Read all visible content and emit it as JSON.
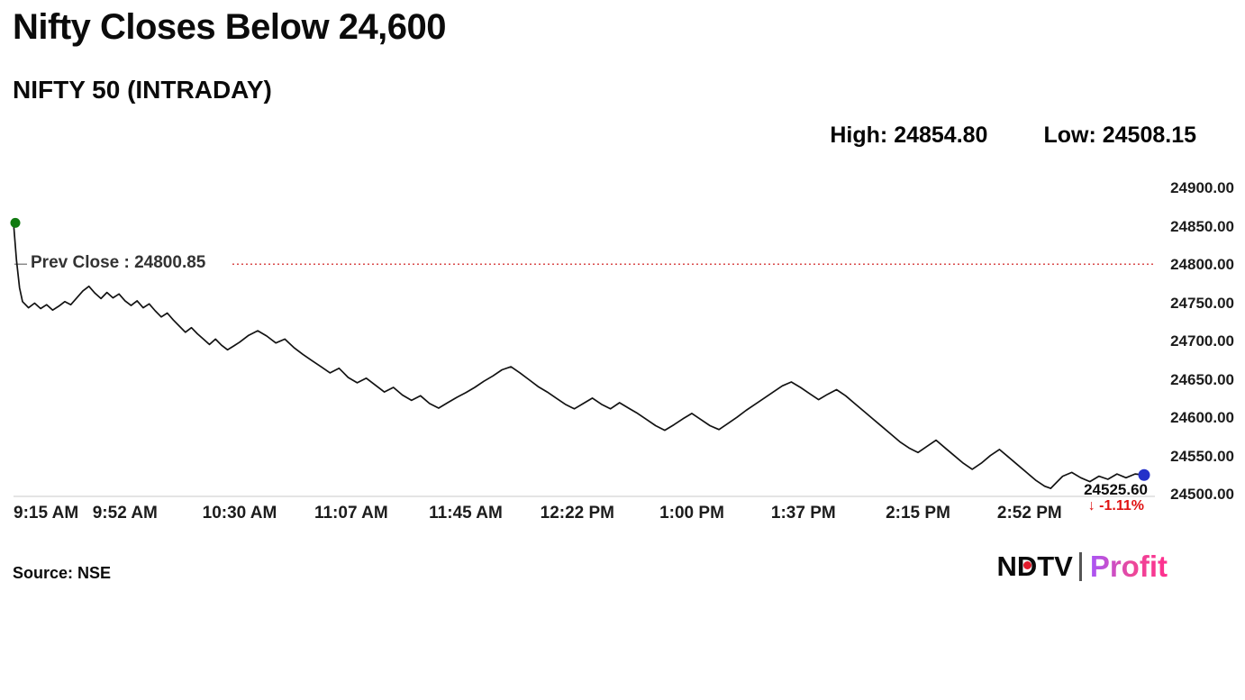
{
  "header": {
    "title": "Nifty Closes Below 24,600",
    "subtitle": "NIFTY 50 (INTRADAY)",
    "high": "High: 24854.80",
    "low": "Low: 24508.15"
  },
  "chart_data": {
    "type": "line",
    "title": "NIFTY 50 (INTRADAY)",
    "grid": false,
    "legend": "none",
    "x_axis": {
      "unit": "minutes since 9:15 AM",
      "range": [
        0,
        375
      ],
      "ticks": [
        {
          "t": 0,
          "label": "9:15 AM"
        },
        {
          "t": 37,
          "label": "9:52 AM"
        },
        {
          "t": 75,
          "label": "10:30 AM"
        },
        {
          "t": 112,
          "label": "11:07 AM"
        },
        {
          "t": 150,
          "label": "11:45 AM"
        },
        {
          "t": 187,
          "label": "12:22 PM"
        },
        {
          "t": 225,
          "label": "1:00 PM"
        },
        {
          "t": 262,
          "label": "1:37 PM"
        },
        {
          "t": 300,
          "label": "2:15 PM"
        },
        {
          "t": 337,
          "label": "2:52 PM"
        }
      ]
    },
    "y_axis": {
      "range": [
        24500,
        24900
      ],
      "ticks": [
        {
          "value": 24900,
          "label": "24900.00"
        },
        {
          "value": 24850,
          "label": "24850.00"
        },
        {
          "value": 24800,
          "label": "24800.00"
        },
        {
          "value": 24750,
          "label": "24750.00"
        },
        {
          "value": 24700,
          "label": "24700.00"
        },
        {
          "value": 24650,
          "label": "24650.00"
        },
        {
          "value": 24600,
          "label": "24600.00"
        },
        {
          "value": 24550,
          "label": "24550.00"
        },
        {
          "value": 24500,
          "label": "24500.00"
        }
      ]
    },
    "prev_close": {
      "value": 24800.85,
      "label": "Prev Close : 24800.85"
    },
    "stats": {
      "high": 24854.8,
      "low": 24508.15,
      "close": 24525.6,
      "change_pct": -1.11
    },
    "end_label": {
      "value": "24525.60",
      "change": "↓ -1.11%"
    },
    "colors": {
      "line": "#121212",
      "prev_close": "#d94b4b",
      "prev_close_tick": "#8a8a8a",
      "start_marker": "#117a11",
      "end_marker": "#2431c9",
      "change_text": "#e01212",
      "axis": "#c9c9c9"
    },
    "series": [
      {
        "name": "NIFTY 50",
        "points": [
          [
            0,
            24854.8
          ],
          [
            1,
            24806
          ],
          [
            2,
            24770
          ],
          [
            3,
            24752
          ],
          [
            5,
            24744
          ],
          [
            7,
            24750
          ],
          [
            9,
            24743
          ],
          [
            11,
            24748
          ],
          [
            13,
            24741
          ],
          [
            15,
            24746
          ],
          [
            17,
            24752
          ],
          [
            19,
            24748
          ],
          [
            21,
            24757
          ],
          [
            23,
            24766
          ],
          [
            25,
            24772
          ],
          [
            27,
            24763
          ],
          [
            29,
            24756
          ],
          [
            31,
            24764
          ],
          [
            33,
            24757
          ],
          [
            35,
            24762
          ],
          [
            37,
            24753
          ],
          [
            39,
            24747
          ],
          [
            41,
            24753
          ],
          [
            43,
            24744
          ],
          [
            45,
            24749
          ],
          [
            47,
            24740
          ],
          [
            49,
            24732
          ],
          [
            51,
            24737
          ],
          [
            53,
            24728
          ],
          [
            55,
            24720
          ],
          [
            57,
            24712
          ],
          [
            59,
            24718
          ],
          [
            61,
            24710
          ],
          [
            63,
            24703
          ],
          [
            65,
            24696
          ],
          [
            67,
            24703
          ],
          [
            69,
            24695
          ],
          [
            71,
            24689
          ],
          [
            73,
            24694
          ],
          [
            75,
            24699
          ],
          [
            78,
            24708
          ],
          [
            81,
            24714
          ],
          [
            84,
            24707
          ],
          [
            87,
            24698
          ],
          [
            90,
            24703
          ],
          [
            93,
            24692
          ],
          [
            96,
            24683
          ],
          [
            99,
            24675
          ],
          [
            102,
            24667
          ],
          [
            105,
            24659
          ],
          [
            108,
            24665
          ],
          [
            111,
            24653
          ],
          [
            114,
            24646
          ],
          [
            117,
            24652
          ],
          [
            120,
            24643
          ],
          [
            123,
            24634
          ],
          [
            126,
            24640
          ],
          [
            129,
            24630
          ],
          [
            132,
            24623
          ],
          [
            135,
            24629
          ],
          [
            138,
            24619
          ],
          [
            141,
            24613
          ],
          [
            144,
            24620
          ],
          [
            147,
            24627
          ],
          [
            150,
            24633
          ],
          [
            153,
            24640
          ],
          [
            156,
            24648
          ],
          [
            159,
            24655
          ],
          [
            162,
            24663
          ],
          [
            165,
            24667
          ],
          [
            168,
            24659
          ],
          [
            171,
            24650
          ],
          [
            174,
            24641
          ],
          [
            177,
            24634
          ],
          [
            180,
            24626
          ],
          [
            183,
            24618
          ],
          [
            186,
            24612
          ],
          [
            189,
            24619
          ],
          [
            192,
            24626
          ],
          [
            195,
            24618
          ],
          [
            198,
            24612
          ],
          [
            201,
            24620
          ],
          [
            204,
            24613
          ],
          [
            207,
            24606
          ],
          [
            210,
            24598
          ],
          [
            213,
            24590
          ],
          [
            216,
            24584
          ],
          [
            219,
            24591
          ],
          [
            222,
            24599
          ],
          [
            225,
            24606
          ],
          [
            228,
            24598
          ],
          [
            231,
            24590
          ],
          [
            234,
            24585
          ],
          [
            237,
            24593
          ],
          [
            240,
            24601
          ],
          [
            243,
            24610
          ],
          [
            246,
            24618
          ],
          [
            249,
            24626
          ],
          [
            252,
            24634
          ],
          [
            255,
            24642
          ],
          [
            258,
            24647
          ],
          [
            261,
            24640
          ],
          [
            264,
            24632
          ],
          [
            267,
            24624
          ],
          [
            270,
            24631
          ],
          [
            273,
            24637
          ],
          [
            276,
            24629
          ],
          [
            279,
            24619
          ],
          [
            282,
            24609
          ],
          [
            285,
            24599
          ],
          [
            288,
            24589
          ],
          [
            291,
            24579
          ],
          [
            294,
            24569
          ],
          [
            297,
            24561
          ],
          [
            300,
            24555
          ],
          [
            303,
            24563
          ],
          [
            306,
            24571
          ],
          [
            309,
            24561
          ],
          [
            312,
            24551
          ],
          [
            315,
            24541
          ],
          [
            318,
            24533
          ],
          [
            321,
            24541
          ],
          [
            324,
            24551
          ],
          [
            327,
            24559
          ],
          [
            330,
            24549
          ],
          [
            333,
            24539
          ],
          [
            336,
            24529
          ],
          [
            339,
            24519
          ],
          [
            342,
            24511
          ],
          [
            344,
            24508.15
          ],
          [
            346,
            24516
          ],
          [
            348,
            24524
          ],
          [
            351,
            24529
          ],
          [
            354,
            24522
          ],
          [
            357,
            24517
          ],
          [
            360,
            24524
          ],
          [
            363,
            24520
          ],
          [
            366,
            24527
          ],
          [
            369,
            24522
          ],
          [
            372,
            24527
          ],
          [
            375,
            24525.6
          ]
        ]
      }
    ]
  },
  "footer": {
    "source": "Source: NSE",
    "logo": {
      "ndtv": "NDTV",
      "profit": "Profit"
    }
  }
}
